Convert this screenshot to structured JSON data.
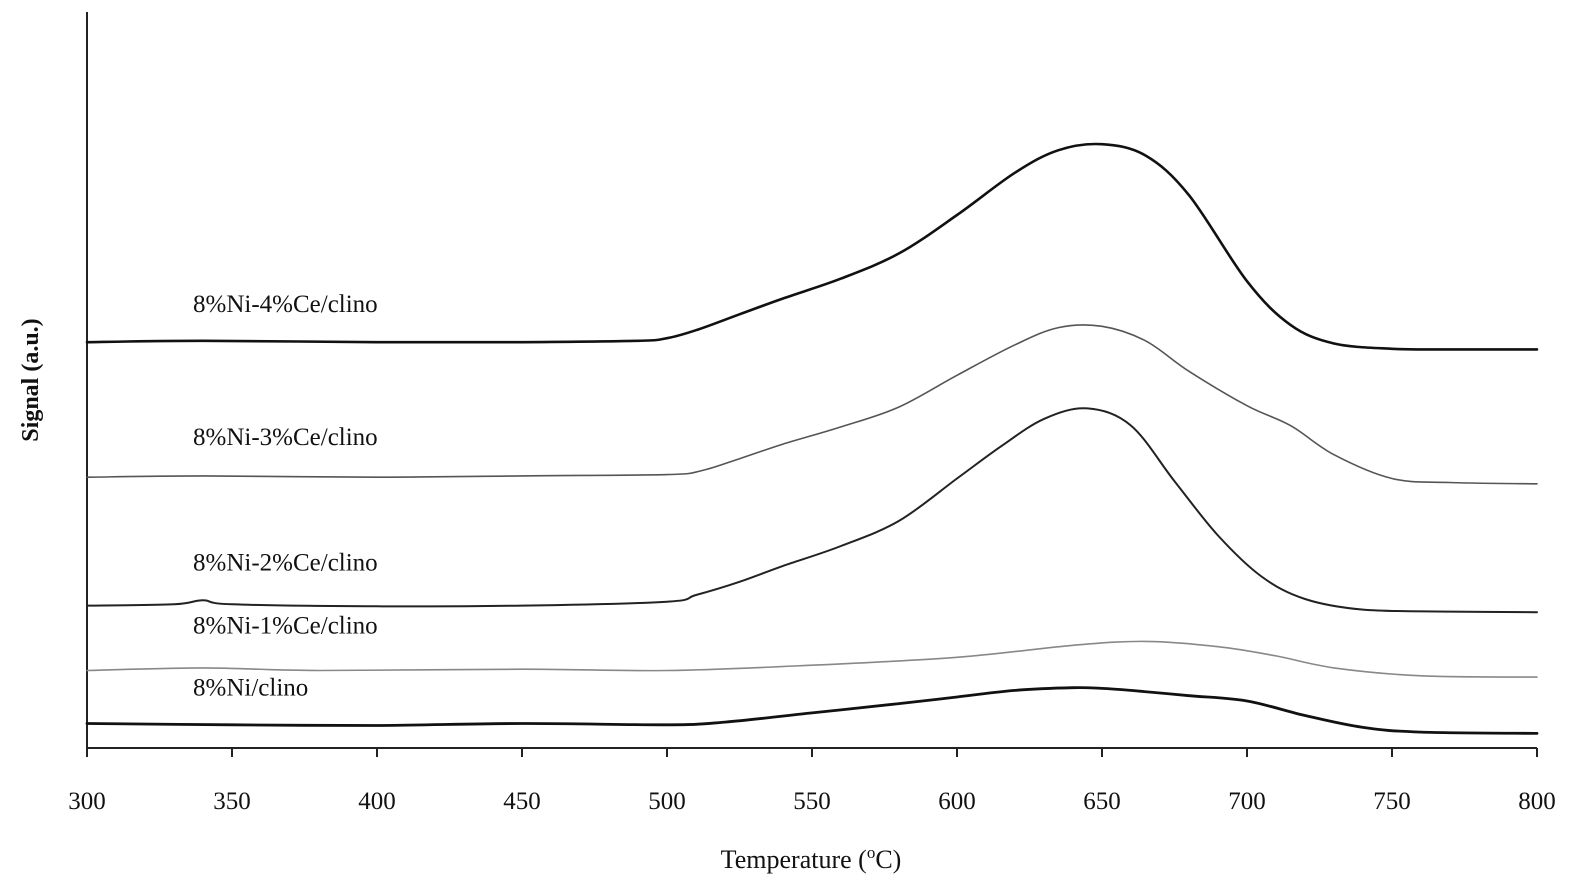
{
  "chart_data": {
    "type": "line",
    "xlabel_main": "Temperature (",
    "xlabel_sup": "o",
    "xlabel_end": "C)",
    "ylabel": "Signal (a.u.)",
    "xlim": [
      300,
      800
    ],
    "xticks": [
      300,
      350,
      400,
      450,
      500,
      550,
      600,
      650,
      700,
      750,
      800
    ],
    "xtick_labels": [
      "300",
      "350",
      "400",
      "450",
      "500",
      "550",
      "600",
      "650",
      "700",
      "750",
      "800"
    ],
    "y_units": "arbitrary",
    "ylim": [
      0,
      100
    ],
    "grid": false,
    "legend": "labels placed above each curve",
    "series": [
      {
        "name": "8%Ni-4%Ce/clino",
        "color": "#111111",
        "stroke_width": 2.6,
        "x": [
          300,
          340,
          400,
          450,
          490,
          500,
          510,
          525,
          540,
          560,
          580,
          600,
          620,
          635,
          650,
          665,
          680,
          700,
          715,
          730,
          750,
          770,
          800
        ],
        "values": [
          60.4,
          60.6,
          60.4,
          60.4,
          60.6,
          61.0,
          62.2,
          64.6,
          67.0,
          70.0,
          73.8,
          79.6,
          86.0,
          89.4,
          90.3,
          88.6,
          82.6,
          69.6,
          63.0,
          60.2,
          59.4,
          59.3,
          59.3
        ]
      },
      {
        "name": "8%Ni-3%Ce/clino",
        "color": "#555555",
        "stroke_width": 1.6,
        "x": [
          300,
          340,
          400,
          450,
          500,
          512,
          525,
          540,
          560,
          580,
          600,
          620,
          635,
          650,
          665,
          680,
          700,
          715,
          730,
          750,
          770,
          800
        ],
        "values": [
          40.0,
          40.2,
          40.0,
          40.2,
          40.4,
          41.0,
          42.8,
          45.0,
          47.6,
          50.6,
          55.4,
          60.0,
          62.6,
          62.8,
          60.6,
          56.0,
          50.8,
          47.8,
          43.4,
          39.8,
          39.2,
          39.0
        ]
      },
      {
        "name": "8%Ni-2%Ce/clino",
        "color": "#222222",
        "stroke_width": 2.0,
        "x": [
          300,
          330,
          340,
          350,
          400,
          450,
          500,
          510,
          525,
          540,
          560,
          580,
          600,
          615,
          630,
          645,
          660,
          675,
          690,
          705,
          720,
          740,
          770,
          800
        ],
        "values": [
          20.6,
          20.8,
          21.4,
          20.8,
          20.5,
          20.6,
          21.2,
          22.2,
          24.2,
          26.6,
          29.6,
          33.4,
          39.8,
          44.6,
          48.8,
          50.4,
          47.8,
          39.4,
          31.2,
          25.0,
          21.6,
          20.0,
          19.7,
          19.6
        ]
      },
      {
        "name": "8%Ni-1%Ce/clino",
        "color": "#888888",
        "stroke_width": 1.6,
        "x": [
          300,
          340,
          380,
          450,
          500,
          550,
          600,
          640,
          665,
          690,
          710,
          730,
          760,
          800
        ],
        "values": [
          10.8,
          11.2,
          10.8,
          11.0,
          10.8,
          11.6,
          12.8,
          14.6,
          15.2,
          14.4,
          13.0,
          11.2,
          10.0,
          9.8
        ]
      },
      {
        "name": "8%Ni/clino",
        "color": "#111111",
        "stroke_width": 2.8,
        "x": [
          300,
          350,
          400,
          450,
          500,
          520,
          550,
          580,
          600,
          620,
          640,
          650,
          660,
          680,
          700,
          720,
          740,
          760,
          800
        ],
        "values": [
          2.8,
          2.6,
          2.5,
          2.8,
          2.6,
          3.0,
          4.4,
          5.8,
          6.8,
          7.8,
          8.2,
          8.1,
          7.8,
          7.0,
          6.2,
          4.0,
          2.2,
          1.5,
          1.3
        ]
      }
    ]
  }
}
